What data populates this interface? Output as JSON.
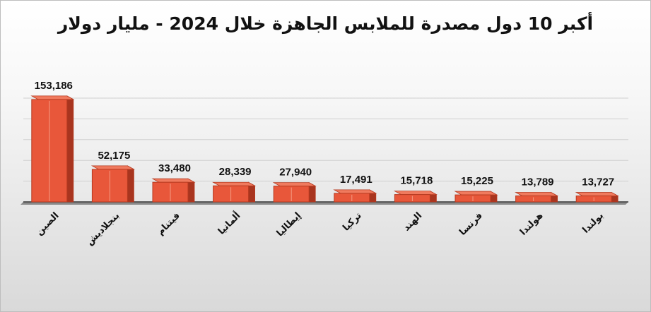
{
  "chart_data": {
    "type": "bar",
    "title": "أكبر 10 دول مصدرة للملابس الجاهزة خلال 2024 - مليار دولار",
    "categories": [
      "الصين",
      "بنجلاديش",
      "فيتنام",
      "ألمانيا",
      "إيطاليا",
      "تركيا",
      "الهند",
      "فرنسا",
      "هولندا",
      "بولندا"
    ],
    "series": [
      {
        "values": [
          153186,
          52175,
          33480,
          28339,
          27940,
          17491,
          15718,
          15225,
          13789,
          13727
        ],
        "value_labels": [
          "153,186",
          "52,175",
          "33,480",
          "28,339",
          "27,940",
          "17,491",
          "15,718",
          "15,225",
          "13,789",
          "13,727"
        ]
      }
    ],
    "ylim": [
      0,
      250000
    ],
    "grid": true,
    "legend": "none",
    "style": "3d-column",
    "colors": {
      "bar_front": "#e8573a",
      "bar_side": "#a8351f",
      "bar_top": "#f07a5e",
      "bar_edge": "#b63a20",
      "grid": "#cfcfcf",
      "axis": "#3c3c3c"
    }
  }
}
